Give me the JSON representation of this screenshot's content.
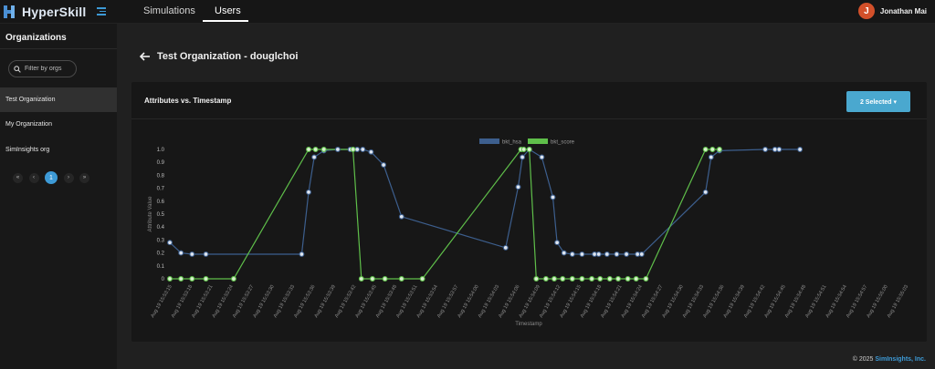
{
  "app": {
    "name": "HyperSkill"
  },
  "nav": {
    "tabs": [
      {
        "label": "Simulations"
      },
      {
        "label": "Users"
      }
    ]
  },
  "user": {
    "initial": "J",
    "name": "Jonathan Mai"
  },
  "sidebar": {
    "title": "Organizations",
    "filter_placeholder": "Filter by orgs",
    "orgs": [
      {
        "label": "Test Organization"
      },
      {
        "label": "My Organization"
      },
      {
        "label": "SimInsights org"
      }
    ],
    "pager": {
      "first": "«",
      "prev": "‹",
      "current": "1",
      "next": "›",
      "last": "»"
    }
  },
  "page": {
    "title": "Test Organization - douglchoi"
  },
  "card": {
    "title": "Attributes vs. Timestamp",
    "select_label": "2 Selected ▾"
  },
  "footer": {
    "copyright": "© 2025",
    "company": "SimInsights, Inc."
  },
  "colors": {
    "accent": "#3d9ad6",
    "series_blue": "#3d5f8e",
    "series_green": "#5fbf4a"
  },
  "chart_data": {
    "type": "line",
    "xlabel": "Timestamp",
    "ylabel": "Attribute Value",
    "ylim": [
      0,
      1
    ],
    "yticks": [
      "0",
      "0.1",
      "0.2",
      "0.3",
      "0.4",
      "0.5",
      "0.6",
      "0.7",
      "0.8",
      "0.9",
      "1.0"
    ],
    "legend_position": "top",
    "x": [
      "Aug 19 15:53:15",
      "Aug 19 15:53:18",
      "Aug 19 15:53:21",
      "Aug 19 15:53:24",
      "Aug 19 15:53:27",
      "Aug 19 15:53:30",
      "Aug 19 15:53:33",
      "Aug 19 15:53:36",
      "Aug 19 15:53:39",
      "Aug 19 15:53:42",
      "Aug 19 15:53:45",
      "Aug 19 15:53:48",
      "Aug 19 15:53:51",
      "Aug 19 15:53:54",
      "Aug 19 15:53:57",
      "Aug 19 15:54:00",
      "Aug 19 15:54:03",
      "Aug 19 15:54:06",
      "Aug 19 15:54:09",
      "Aug 19 15:54:12",
      "Aug 19 15:54:15",
      "Aug 19 15:54:18",
      "Aug 19 15:54:21",
      "Aug 19 15:54:24",
      "Aug 19 15:54:27",
      "Aug 19 15:54:30",
      "Aug 19 15:54:33",
      "Aug 19 15:54:36",
      "Aug 19 15:54:39",
      "Aug 19 15:54:42",
      "Aug 19 15:54:45",
      "Aug 19 15:54:48",
      "Aug 19 15:54:51",
      "Aug 19 15:54:54",
      "Aug 19 15:54:57",
      "Aug 19 15:55:00",
      "Aug 19 15:55:03"
    ],
    "series": [
      {
        "name": "bkt_hsa",
        "points": [
          {
            "x": 0.0,
            "y": 0.28
          },
          {
            "x": 0.8,
            "y": 0.2
          },
          {
            "x": 1.6,
            "y": 0.19
          },
          {
            "x": 2.6,
            "y": 0.19
          },
          {
            "x": 9.5,
            "y": 0.19
          },
          {
            "x": 10.0,
            "y": 0.67
          },
          {
            "x": 10.4,
            "y": 0.94
          },
          {
            "x": 11.1,
            "y": 0.99
          },
          {
            "x": 12.1,
            "y": 1.0
          },
          {
            "x": 13.0,
            "y": 1.0
          },
          {
            "x": 13.5,
            "y": 1.0
          },
          {
            "x": 13.9,
            "y": 1.0
          },
          {
            "x": 14.5,
            "y": 0.98
          },
          {
            "x": 15.4,
            "y": 0.88
          },
          {
            "x": 16.7,
            "y": 0.48
          },
          {
            "x": 24.2,
            "y": 0.24
          },
          {
            "x": 25.1,
            "y": 0.71
          },
          {
            "x": 25.4,
            "y": 0.94
          },
          {
            "x": 25.9,
            "y": 1.0
          },
          {
            "x": 26.8,
            "y": 0.94
          },
          {
            "x": 27.6,
            "y": 0.63
          },
          {
            "x": 27.9,
            "y": 0.28
          },
          {
            "x": 28.4,
            "y": 0.2
          },
          {
            "x": 29.0,
            "y": 0.19
          },
          {
            "x": 29.7,
            "y": 0.19
          },
          {
            "x": 30.6,
            "y": 0.19
          },
          {
            "x": 30.9,
            "y": 0.19
          },
          {
            "x": 31.5,
            "y": 0.19
          },
          {
            "x": 32.2,
            "y": 0.19
          },
          {
            "x": 32.9,
            "y": 0.19
          },
          {
            "x": 33.7,
            "y": 0.19
          },
          {
            "x": 34.0,
            "y": 0.19
          },
          {
            "x": 38.6,
            "y": 0.67
          },
          {
            "x": 39.0,
            "y": 0.94
          },
          {
            "x": 39.6,
            "y": 0.99
          },
          {
            "x": 42.9,
            "y": 1.0
          },
          {
            "x": 43.6,
            "y": 1.0
          },
          {
            "x": 43.9,
            "y": 1.0
          },
          {
            "x": 45.4,
            "y": 1.0
          }
        ]
      },
      {
        "name": "bkt_score",
        "points": [
          {
            "x": 0.0,
            "y": 0
          },
          {
            "x": 0.8,
            "y": 0
          },
          {
            "x": 1.6,
            "y": 0
          },
          {
            "x": 2.6,
            "y": 0
          },
          {
            "x": 4.6,
            "y": 0
          },
          {
            "x": 10.0,
            "y": 1
          },
          {
            "x": 10.5,
            "y": 1
          },
          {
            "x": 11.1,
            "y": 1
          },
          {
            "x": 13.2,
            "y": 1
          },
          {
            "x": 13.8,
            "y": 0
          },
          {
            "x": 14.6,
            "y": 0
          },
          {
            "x": 15.5,
            "y": 0
          },
          {
            "x": 16.7,
            "y": 0
          },
          {
            "x": 18.2,
            "y": 0
          },
          {
            "x": 25.3,
            "y": 1
          },
          {
            "x": 25.5,
            "y": 1
          },
          {
            "x": 25.9,
            "y": 1
          },
          {
            "x": 26.4,
            "y": 0
          },
          {
            "x": 27.1,
            "y": 0
          },
          {
            "x": 27.7,
            "y": 0
          },
          {
            "x": 28.3,
            "y": 0
          },
          {
            "x": 29.0,
            "y": 0
          },
          {
            "x": 29.7,
            "y": 0
          },
          {
            "x": 30.4,
            "y": 0
          },
          {
            "x": 31.0,
            "y": 0
          },
          {
            "x": 31.7,
            "y": 0
          },
          {
            "x": 32.3,
            "y": 0
          },
          {
            "x": 33.0,
            "y": 0
          },
          {
            "x": 33.6,
            "y": 0
          },
          {
            "x": 34.3,
            "y": 0
          },
          {
            "x": 38.6,
            "y": 1
          },
          {
            "x": 39.1,
            "y": 1
          },
          {
            "x": 39.6,
            "y": 1
          }
        ]
      }
    ]
  }
}
